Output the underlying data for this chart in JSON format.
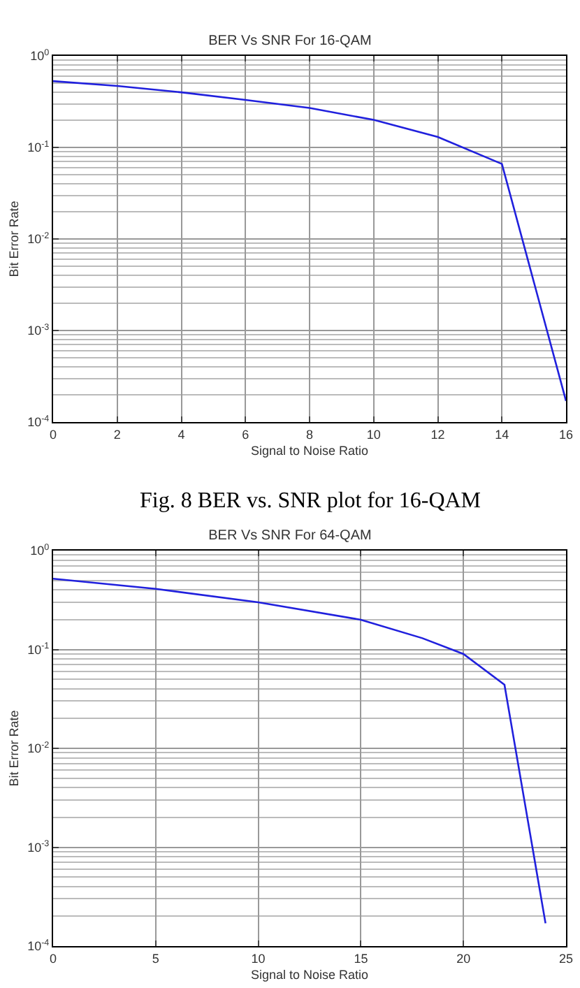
{
  "chart_data": [
    {
      "type": "line",
      "title": "BER Vs SNR For 16-QAM",
      "xlabel": "Signal to Noise Ratio",
      "ylabel": "Bit Error Rate",
      "annotations": [
        "Fig. 8 BER vs. SNR plot for 16-QAM"
      ],
      "x": [
        0,
        2,
        4,
        6,
        8,
        10,
        12,
        14,
        16
      ],
      "series": [
        {
          "color": "#2020dd",
          "values": [
            0.53,
            0.47,
            0.4,
            0.33,
            0.27,
            0.2,
            0.13,
            0.066,
            0.00017
          ]
        }
      ],
      "log": "y",
      "grid": true,
      "xlim": [
        0,
        16
      ],
      "xticks": [
        0,
        2,
        4,
        6,
        8,
        10,
        12,
        14,
        16
      ],
      "ylim": [
        0.0001,
        1
      ],
      "yticks": [
        {
          "value": 0.0001,
          "label": "10$^{-4}$"
        },
        {
          "value": 0.001,
          "label": "10$^{-3}$"
        },
        {
          "value": 0.01,
          "label": "10$^{-2}$"
        },
        {
          "value": 0.1,
          "label": "10$^{-1}$"
        },
        {
          "value": 1,
          "label": "10$^{0}$"
        }
      ]
    },
    {
      "type": "line",
      "title": "BER Vs SNR For 64-QAM",
      "xlabel": "Signal to Noise Ratio",
      "ylabel": "Bit Error Rate",
      "x": [
        0,
        5,
        10,
        15,
        18,
        20,
        22,
        24
      ],
      "series": [
        {
          "color": "#2020dd",
          "values": [
            0.52,
            0.41,
            0.3,
            0.2,
            0.13,
            0.09,
            0.044,
            0.00017
          ]
        }
      ],
      "log": "y",
      "grid": true,
      "xlim": [
        0,
        25
      ],
      "xticks": [
        0,
        5,
        10,
        15,
        20,
        25
      ],
      "ylim": [
        0.0001,
        1
      ],
      "yticks": [
        {
          "value": 0.0001,
          "label": "10$^{-4}$"
        },
        {
          "value": 0.001,
          "label": "10$^{-3}$"
        },
        {
          "value": 0.01,
          "label": "10$^{-2}$"
        },
        {
          "value": 0.1,
          "label": "10$^{-1}$"
        },
        {
          "value": 1,
          "label": "10$^{0}$"
        }
      ]
    }
  ]
}
